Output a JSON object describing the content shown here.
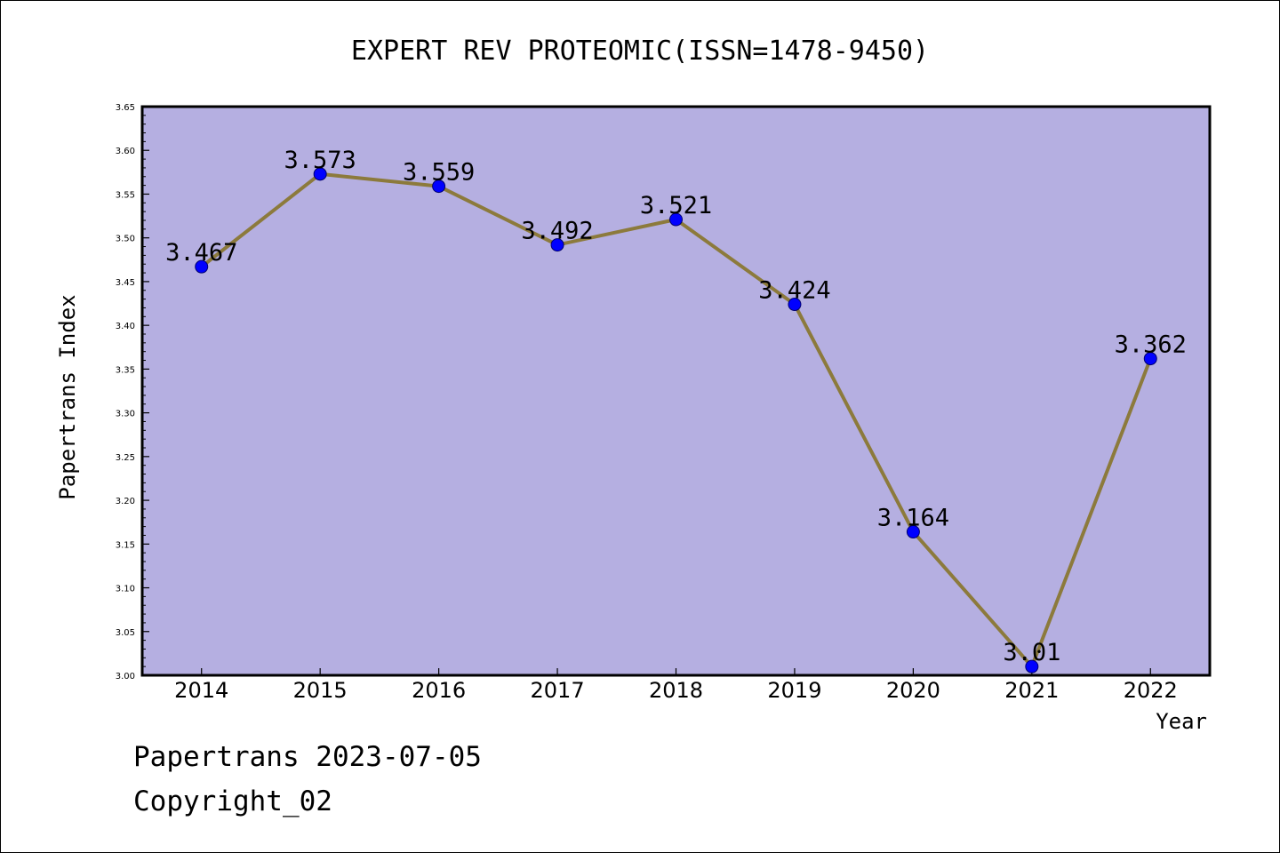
{
  "chart_data": {
    "type": "line",
    "title": "EXPERT REV PROTEOMIC(ISSN=1478-9450)",
    "xlabel": "Year",
    "ylabel": "Papertrans Index",
    "categories": [
      "2014",
      "2015",
      "2016",
      "2017",
      "2018",
      "2019",
      "2020",
      "2021",
      "2022"
    ],
    "series": [
      {
        "values": [
          3.467,
          3.573,
          3.559,
          3.492,
          3.521,
          3.424,
          3.164,
          3.01,
          3.362
        ]
      }
    ],
    "data_labels": [
      "3.467",
      "3.573",
      "3.559",
      "3.492",
      "3.521",
      "3.424",
      "3.164",
      "3.01",
      "3.362"
    ],
    "ylim": [
      3.0,
      3.65
    ],
    "yticks": [
      "3.00",
      "3.05",
      "3.10",
      "3.15",
      "3.20",
      "3.25",
      "3.30",
      "3.35",
      "3.40",
      "3.45",
      "3.50",
      "3.55",
      "3.60",
      "3.65"
    ],
    "grid": false,
    "legend": "none",
    "colors": {
      "plot_background": "#b5afe1",
      "line": "#8c7a3c",
      "marker": "#0000ff"
    }
  },
  "footer": {
    "date_text": "Papertrans 2023-07-05",
    "copyright_text": "Copyright_02"
  }
}
